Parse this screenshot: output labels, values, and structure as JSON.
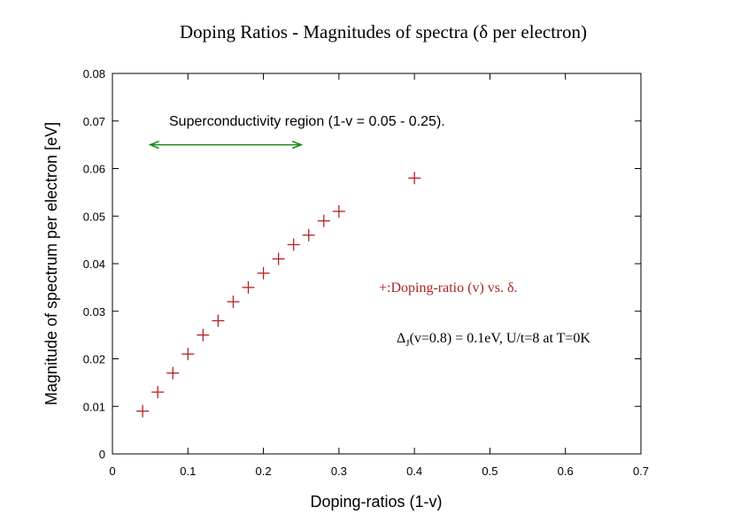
{
  "chart_data": {
    "type": "scatter",
    "title": "Doping Ratios - Magnitudes of spectra (δ per electron)",
    "xlabel": "Doping-ratios (1-v)",
    "ylabel": "Magnitude of spectrum per electron [eV]",
    "xlim": [
      0,
      0.7
    ],
    "ylim": [
      0,
      0.08
    ],
    "x_ticks": [
      0,
      0.1,
      0.2,
      0.3,
      0.4,
      0.5,
      0.6,
      0.7
    ],
    "x_tick_labels": [
      "0",
      "0.1",
      "0.2",
      "0.3",
      "0.4",
      "0.5",
      "0.6",
      "0.7"
    ],
    "y_ticks": [
      0,
      0.01,
      0.02,
      0.03,
      0.04,
      0.05,
      0.06,
      0.07,
      0.08
    ],
    "y_tick_labels": [
      "0",
      "0.01",
      "0.02",
      "0.03",
      "0.04",
      "0.05",
      "0.06",
      "0.07",
      "0.08"
    ],
    "grid": false,
    "series": [
      {
        "name": "+:Doping-ratio (v) vs. δ.",
        "marker": "plus",
        "color": "#b22222",
        "x": [
          0.04,
          0.06,
          0.08,
          0.1,
          0.12,
          0.14,
          0.16,
          0.18,
          0.2,
          0.22,
          0.24,
          0.26,
          0.28,
          0.3,
          0.4
        ],
        "y": [
          0.009,
          0.013,
          0.017,
          0.021,
          0.025,
          0.028,
          0.032,
          0.035,
          0.038,
          0.041,
          0.044,
          0.046,
          0.049,
          0.051,
          0.058
        ]
      }
    ],
    "annotations": {
      "region_label": "Superconductivity region (1-v = 0.05 - 0.25).",
      "region_arrow": {
        "x_start": 0.05,
        "x_end": 0.25,
        "y": 0.065,
        "color": "#1a8a1a"
      },
      "legend_text": "+:Doping-ratio (v) vs. δ.",
      "legend_color": "#b22222",
      "params": {
        "delta_symbol": "Δ",
        "delta_sub": "J",
        "rest": "(v=0.8) = 0.1eV, U/t=8 at T=0K"
      }
    }
  }
}
